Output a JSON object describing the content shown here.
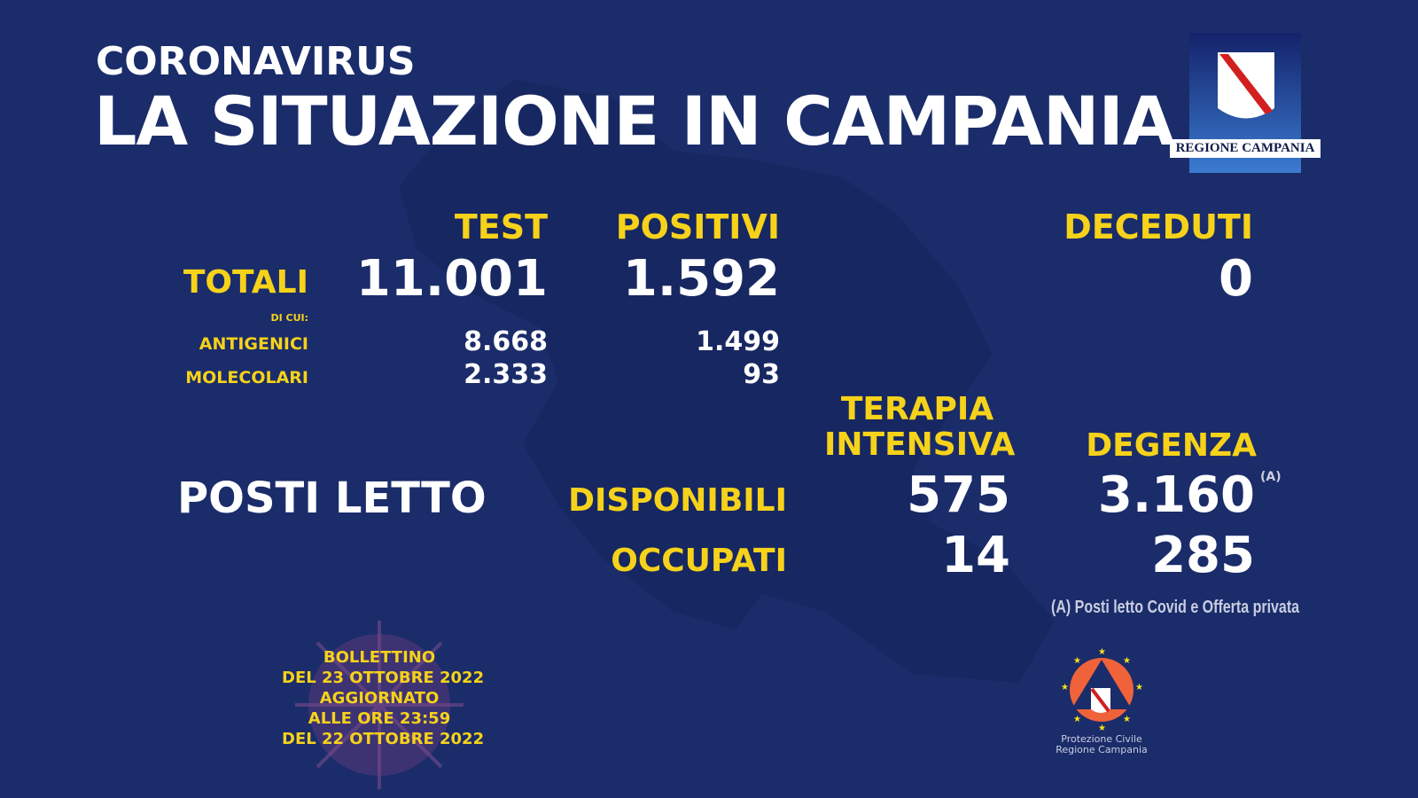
{
  "header": {
    "kicker": "CORONAVIRUS",
    "title": "LA SITUAZIONE IN CAMPANIA"
  },
  "logo_region": {
    "text": "REGIONE CAMPANIA"
  },
  "columns": {
    "test": "TEST",
    "positivi": "POSITIVI",
    "deceduti": "DECEDUTI"
  },
  "totali": {
    "label": "TOTALI",
    "test": "11.001",
    "positivi": "1.592",
    "deceduti": "0"
  },
  "di_cui": "DI CUI:",
  "antigenici": {
    "label": "ANTIGENICI",
    "test": "8.668",
    "positivi": "1.499"
  },
  "molecolari": {
    "label": "MOLECOLARI",
    "test": "2.333",
    "positivi": "93"
  },
  "posti_letto": {
    "label": "POSTI LETTO",
    "col_ti_1": "TERAPIA",
    "col_ti_2": "INTENSIVA",
    "col_deg": "DEGENZA",
    "disponibili": {
      "label": "DISPONIBILI",
      "ti": "575",
      "deg": "3.160",
      "note_mark": "(A)"
    },
    "occupati": {
      "label": "OCCUPATI",
      "ti": "14",
      "deg": "285"
    },
    "footnote": "(A) Posti letto Covid e Offerta privata"
  },
  "bollettino": [
    "BOLLETTINO",
    "DEL 23 OTTOBRE 2022",
    "AGGIORNATO",
    "ALLE ORE 23:59",
    "DEL 22 OTTOBRE 2022"
  ],
  "logo_pc": {
    "line1": "Protezione Civile",
    "line2": "Regione Campania"
  },
  "colors": {
    "background": "#1b2c6a",
    "accent": "#f6d21a"
  }
}
